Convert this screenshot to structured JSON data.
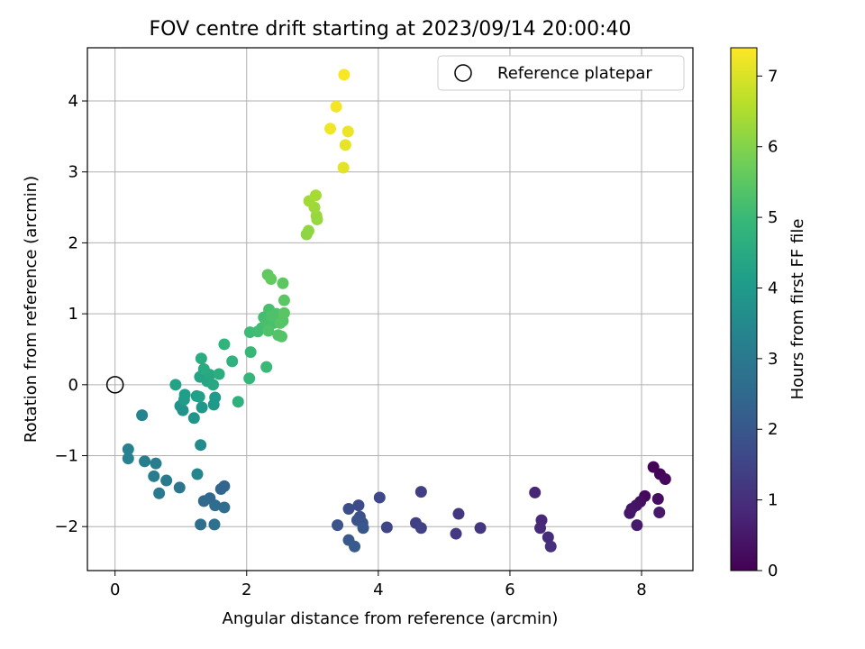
{
  "chart_data": {
    "type": "scatter",
    "title": "FOV centre drift starting at 2023/09/14 20:00:40",
    "xlabel": "Angular distance from reference (arcmin)",
    "ylabel": "Rotation from reference (arcmin)",
    "xlim": [
      -0.42,
      8.78
    ],
    "ylim": [
      -2.62,
      4.75
    ],
    "xticks": [
      0,
      2,
      4,
      6,
      8
    ],
    "xtick_labels": [
      "0",
      "2",
      "4",
      "6",
      "8"
    ],
    "yticks": [
      -2,
      -1,
      0,
      1,
      2,
      3,
      4
    ],
    "ytick_labels": [
      "−2",
      "−1",
      "0",
      "1",
      "2",
      "3",
      "4"
    ],
    "grid": true,
    "legend": {
      "position": "top-right",
      "entries": [
        "Reference platepar"
      ]
    },
    "reference_point": {
      "x": 0,
      "y": 0,
      "label": "Reference platepar"
    },
    "colorbar": {
      "label": "Hours from first FF file",
      "range": [
        0,
        7.4
      ],
      "ticks": [
        0,
        1,
        2,
        3,
        4,
        5,
        6,
        7
      ],
      "tick_labels": [
        "0",
        "1",
        "2",
        "3",
        "4",
        "5",
        "6",
        "7"
      ],
      "colormap": "viridis"
    },
    "points": [
      {
        "x": 8.18,
        "y": -1.16,
        "t": 0.05
      },
      {
        "x": 8.28,
        "y": -1.26,
        "t": 0.1
      },
      {
        "x": 8.36,
        "y": -1.33,
        "t": 0.15
      },
      {
        "x": 8.05,
        "y": -1.57,
        "t": 0.2
      },
      {
        "x": 8.25,
        "y": -1.61,
        "t": 0.25
      },
      {
        "x": 7.98,
        "y": -1.65,
        "t": 0.3
      },
      {
        "x": 7.92,
        "y": -1.7,
        "t": 0.35
      },
      {
        "x": 7.85,
        "y": -1.75,
        "t": 0.4
      },
      {
        "x": 7.82,
        "y": -1.81,
        "t": 0.45
      },
      {
        "x": 8.27,
        "y": -1.8,
        "t": 0.5
      },
      {
        "x": 7.93,
        "y": -1.98,
        "t": 0.55
      },
      {
        "x": 6.38,
        "y": -1.52,
        "t": 0.8
      },
      {
        "x": 6.48,
        "y": -1.91,
        "t": 0.85
      },
      {
        "x": 6.46,
        "y": -2.02,
        "t": 0.9
      },
      {
        "x": 6.58,
        "y": -2.15,
        "t": 0.95
      },
      {
        "x": 6.62,
        "y": -2.28,
        "t": 1.0
      },
      {
        "x": 5.55,
        "y": -2.02,
        "t": 1.15
      },
      {
        "x": 5.22,
        "y": -1.82,
        "t": 1.2
      },
      {
        "x": 5.18,
        "y": -2.1,
        "t": 1.25
      },
      {
        "x": 4.65,
        "y": -1.51,
        "t": 1.35
      },
      {
        "x": 4.57,
        "y": -1.95,
        "t": 1.4
      },
      {
        "x": 4.65,
        "y": -2.02,
        "t": 1.45
      },
      {
        "x": 4.13,
        "y": -2.01,
        "t": 1.55
      },
      {
        "x": 4.02,
        "y": -1.59,
        "t": 1.6
      },
      {
        "x": 3.7,
        "y": -1.7,
        "t": 1.7
      },
      {
        "x": 3.55,
        "y": -1.75,
        "t": 1.75
      },
      {
        "x": 3.72,
        "y": -1.86,
        "t": 1.8
      },
      {
        "x": 3.68,
        "y": -1.91,
        "t": 1.85
      },
      {
        "x": 3.76,
        "y": -1.95,
        "t": 1.9
      },
      {
        "x": 3.38,
        "y": -1.98,
        "t": 1.95
      },
      {
        "x": 3.77,
        "y": -2.02,
        "t": 2.0
      },
      {
        "x": 3.55,
        "y": -2.19,
        "t": 2.05
      },
      {
        "x": 3.64,
        "y": -2.28,
        "t": 2.1
      },
      {
        "x": 1.66,
        "y": -1.43,
        "t": 2.4
      },
      {
        "x": 1.61,
        "y": -1.47,
        "t": 2.45
      },
      {
        "x": 1.44,
        "y": -1.6,
        "t": 2.5
      },
      {
        "x": 1.35,
        "y": -1.64,
        "t": 2.55
      },
      {
        "x": 1.52,
        "y": -1.7,
        "t": 2.6
      },
      {
        "x": 1.66,
        "y": -1.73,
        "t": 2.65
      },
      {
        "x": 1.3,
        "y": -1.97,
        "t": 2.7
      },
      {
        "x": 1.51,
        "y": -1.97,
        "t": 2.75
      },
      {
        "x": 0.98,
        "y": -1.45,
        "t": 2.9
      },
      {
        "x": 0.67,
        "y": -1.53,
        "t": 3.0
      },
      {
        "x": 0.78,
        "y": -1.35,
        "t": 3.05
      },
      {
        "x": 0.59,
        "y": -1.29,
        "t": 3.1
      },
      {
        "x": 0.62,
        "y": -1.11,
        "t": 3.15
      },
      {
        "x": 0.45,
        "y": -1.08,
        "t": 3.2
      },
      {
        "x": 0.2,
        "y": -0.91,
        "t": 3.25
      },
      {
        "x": 0.2,
        "y": -1.04,
        "t": 3.3
      },
      {
        "x": 0.41,
        "y": -0.43,
        "t": 3.35
      },
      {
        "x": 1.25,
        "y": -1.26,
        "t": 3.45
      },
      {
        "x": 1.3,
        "y": -0.85,
        "t": 3.55
      },
      {
        "x": 1.03,
        "y": -0.36,
        "t": 3.75
      },
      {
        "x": 0.99,
        "y": -0.3,
        "t": 3.8
      },
      {
        "x": 1.2,
        "y": -0.47,
        "t": 3.85
      },
      {
        "x": 1.32,
        "y": -0.32,
        "t": 3.9
      },
      {
        "x": 1.5,
        "y": -0.28,
        "t": 3.95
      },
      {
        "x": 1.52,
        "y": -0.18,
        "t": 4.0
      },
      {
        "x": 1.05,
        "y": -0.21,
        "t": 4.05
      },
      {
        "x": 1.06,
        "y": -0.14,
        "t": 4.1
      },
      {
        "x": 1.24,
        "y": -0.16,
        "t": 4.15
      },
      {
        "x": 1.28,
        "y": -0.17,
        "t": 4.2
      },
      {
        "x": 0.92,
        "y": 0.0,
        "t": 4.25
      },
      {
        "x": 1.29,
        "y": 0.11,
        "t": 4.3
      },
      {
        "x": 1.4,
        "y": 0.05,
        "t": 4.35
      },
      {
        "x": 1.49,
        "y": 0.0,
        "t": 4.4
      },
      {
        "x": 1.44,
        "y": 0.14,
        "t": 4.45
      },
      {
        "x": 1.35,
        "y": 0.22,
        "t": 4.5
      },
      {
        "x": 1.31,
        "y": 0.37,
        "t": 4.55
      },
      {
        "x": 1.58,
        "y": 0.15,
        "t": 4.6
      },
      {
        "x": 1.87,
        "y": -0.24,
        "t": 4.7
      },
      {
        "x": 1.78,
        "y": 0.33,
        "t": 4.75
      },
      {
        "x": 1.66,
        "y": 0.57,
        "t": 4.8
      },
      {
        "x": 2.04,
        "y": 0.09,
        "t": 4.9
      },
      {
        "x": 2.06,
        "y": 0.46,
        "t": 4.95
      },
      {
        "x": 2.3,
        "y": 0.25,
        "t": 5.0
      },
      {
        "x": 2.05,
        "y": 0.74,
        "t": 5.05
      },
      {
        "x": 2.17,
        "y": 0.75,
        "t": 5.1
      },
      {
        "x": 2.23,
        "y": 0.8,
        "t": 5.12
      },
      {
        "x": 2.26,
        "y": 0.95,
        "t": 5.15
      },
      {
        "x": 2.34,
        "y": 1.06,
        "t": 5.2
      },
      {
        "x": 2.3,
        "y": 0.88,
        "t": 5.22
      },
      {
        "x": 2.41,
        "y": 0.87,
        "t": 5.25
      },
      {
        "x": 2.38,
        "y": 0.97,
        "t": 5.28
      },
      {
        "x": 2.45,
        "y": 1.0,
        "t": 5.3
      },
      {
        "x": 2.33,
        "y": 0.76,
        "t": 5.32
      },
      {
        "x": 2.48,
        "y": 0.7,
        "t": 5.35
      },
      {
        "x": 2.53,
        "y": 0.68,
        "t": 5.38
      },
      {
        "x": 2.55,
        "y": 0.9,
        "t": 5.4
      },
      {
        "x": 2.51,
        "y": 0.87,
        "t": 5.42
      },
      {
        "x": 2.57,
        "y": 1.01,
        "t": 5.45
      },
      {
        "x": 2.57,
        "y": 1.19,
        "t": 5.48
      },
      {
        "x": 2.55,
        "y": 1.43,
        "t": 5.5
      },
      {
        "x": 2.32,
        "y": 1.55,
        "t": 5.55
      },
      {
        "x": 2.37,
        "y": 1.49,
        "t": 5.6
      },
      {
        "x": 2.91,
        "y": 2.12,
        "t": 6.1
      },
      {
        "x": 2.94,
        "y": 2.17,
        "t": 6.15
      },
      {
        "x": 3.07,
        "y": 2.33,
        "t": 6.2
      },
      {
        "x": 3.06,
        "y": 2.38,
        "t": 6.25
      },
      {
        "x": 3.03,
        "y": 2.5,
        "t": 6.3
      },
      {
        "x": 2.95,
        "y": 2.59,
        "t": 6.35
      },
      {
        "x": 3.05,
        "y": 2.67,
        "t": 6.4
      },
      {
        "x": 3.47,
        "y": 3.06,
        "t": 7.1
      },
      {
        "x": 3.5,
        "y": 3.38,
        "t": 7.15
      },
      {
        "x": 3.54,
        "y": 3.57,
        "t": 7.2
      },
      {
        "x": 3.27,
        "y": 3.61,
        "t": 7.25
      },
      {
        "x": 3.36,
        "y": 3.92,
        "t": 7.3
      },
      {
        "x": 3.48,
        "y": 4.37,
        "t": 7.35
      }
    ]
  }
}
